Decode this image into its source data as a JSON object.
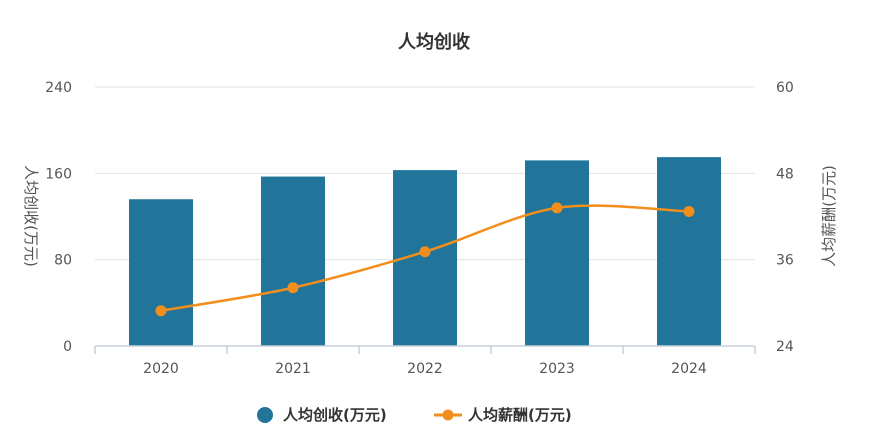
{
  "chart_data": {
    "type": "bar+line",
    "title": "人均创收",
    "categories": [
      "2020",
      "2021",
      "2022",
      "2023",
      "2024"
    ],
    "series": [
      {
        "name": "人均创收(万元)",
        "type": "bar",
        "axis": "left",
        "color": "#21759b",
        "values": [
          136,
          157,
          163,
          172,
          175
        ]
      },
      {
        "name": "人均薪酬(万元)",
        "type": "line",
        "axis": "right",
        "color": "#f28e1c",
        "values": [
          28.9,
          32.1,
          37.1,
          43.2,
          42.7
        ]
      }
    ],
    "y_left": {
      "label": "人均创收(万元)",
      "min": 0,
      "max": 240,
      "ticks": [
        0,
        80,
        160,
        240
      ]
    },
    "y_right": {
      "label": "人均薪酬(万元)",
      "min": 24,
      "max": 60,
      "ticks": [
        24,
        36,
        48,
        60
      ]
    },
    "grid": true,
    "legend_position": "bottom"
  }
}
